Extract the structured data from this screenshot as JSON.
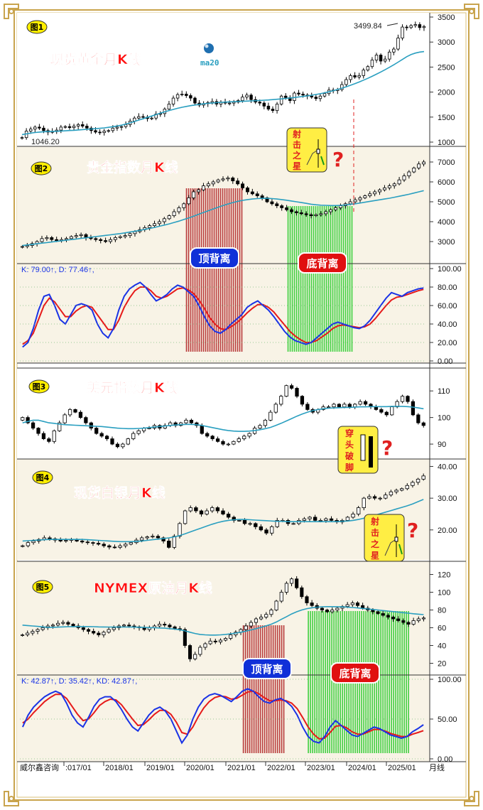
{
  "colors": {
    "panel_bg": "#f8f3e6",
    "up": "#000000",
    "down": "#000000",
    "ma": "#2a9fc0",
    "k_line": "#1a33e6",
    "d_line": "#e61a1a",
    "top_div": "#b83a3a",
    "bottom_div": "#40d040",
    "title_red": "#ff1a1a"
  },
  "frame": {
    "x_labels": [
      "威尔鑫咨询",
      ":017/01",
      "2018/01",
      "2019/01",
      "2020/01",
      "2021/01",
      "2022/01",
      "2023/01",
      "2024/01",
      "2025/01"
    ],
    "period_label": "月线"
  },
  "annotations": {
    "shooting_star": [
      "射",
      "击",
      "之",
      "星"
    ],
    "piercing": [
      "穿",
      "头",
      "破",
      "脚"
    ],
    "question": "?",
    "top_divergence": "顶背离",
    "bottom_divergence": "底背离",
    "ma_label": "ma20"
  },
  "chart_data": [
    {
      "type": "candlestick",
      "badge": "图1",
      "title": "现货黄金月K线",
      "ylim": [
        1000,
        3500
      ],
      "yticks": [
        "1000",
        "1500",
        "2000",
        "2500",
        "3000",
        "3500"
      ],
      "marked_high": "3499.84",
      "marked_low": "1046.20",
      "close": [
        1090,
        1220,
        1260,
        1300,
        1280,
        1230,
        1200,
        1210,
        1240,
        1300,
        1310,
        1290,
        1320,
        1350,
        1320,
        1280,
        1230,
        1200,
        1190,
        1220,
        1230,
        1280,
        1300,
        1310,
        1350,
        1420,
        1480,
        1510,
        1500,
        1470,
        1480,
        1560,
        1570,
        1660,
        1760,
        1880,
        1950,
        1960,
        1930,
        1880,
        1780,
        1740,
        1770,
        1790,
        1810,
        1760,
        1800,
        1780,
        1780,
        1800,
        1830,
        1900,
        1940,
        1850,
        1800,
        1780,
        1720,
        1660,
        1630,
        1760,
        1920,
        1890,
        1830,
        1980,
        1960,
        1940,
        1920,
        1900,
        1870,
        1920,
        1970,
        2040,
        2030,
        2050,
        2150,
        2250,
        2330,
        2300,
        2330,
        2440,
        2510,
        2640,
        2740,
        2620,
        2660,
        2800,
        2860,
        3080,
        3300,
        3290,
        3330,
        3350,
        3290,
        3310
      ],
      "ma20": [
        1150,
        1165,
        1180,
        1192,
        1200,
        1208,
        1212,
        1215,
        1218,
        1222,
        1226,
        1231,
        1236,
        1243,
        1250,
        1256,
        1262,
        1268,
        1275,
        1284,
        1295,
        1308,
        1322,
        1340,
        1360,
        1385,
        1412,
        1440,
        1468,
        1495,
        1522,
        1550,
        1578,
        1605,
        1630,
        1654,
        1676,
        1696,
        1713,
        1728,
        1742,
        1754,
        1765,
        1774,
        1782,
        1789,
        1795,
        1800,
        1804,
        1808,
        1812,
        1816,
        1820,
        1824,
        1828,
        1833,
        1838,
        1843,
        1849,
        1856,
        1864,
        1873,
        1882,
        1892,
        1902,
        1913,
        1925,
        1938,
        1952,
        1968,
        1986,
        2006,
        2028,
        2052,
        2078,
        2106,
        2136,
        2168,
        2202,
        2238,
        2276,
        2316,
        2358,
        2402,
        2448,
        2496,
        2546,
        2598,
        2652,
        2708,
        2750,
        2780,
        2800,
        2810
      ]
    },
    {
      "type": "candlestick",
      "badge": "图2",
      "title": "贵金指数月K线",
      "ylim": [
        2000,
        7500
      ],
      "yticks": [
        "3000",
        "4000",
        "5000",
        "6000",
        "7000"
      ],
      "close": [
        2750,
        2800,
        2900,
        3000,
        3150,
        3200,
        3100,
        3050,
        3100,
        3150,
        3250,
        3300,
        3350,
        3200,
        3150,
        3100,
        3050,
        3000,
        3100,
        3200,
        3250,
        3300,
        3400,
        3500,
        3600,
        3700,
        3800,
        3900,
        4000,
        4150,
        4300,
        4500,
        4700,
        4900,
        5200,
        5500,
        5600,
        5800,
        5900,
        6000,
        6100,
        6150,
        6200,
        6050,
        5900,
        5700,
        5500,
        5400,
        5300,
        5200,
        5000,
        4900,
        4800,
        4700,
        4600,
        4500,
        4450,
        4400,
        4350,
        4300,
        4350,
        4400,
        4500,
        4600,
        4700,
        4800,
        4900,
        5000,
        5100,
        5200,
        5300,
        5400,
        5500,
        5600,
        5700,
        5800,
        5900,
        6100,
        6300,
        6500,
        6700,
        6900,
        7000
      ],
      "ma20": [
        2800,
        2830,
        2860,
        2890,
        2920,
        2950,
        2980,
        3010,
        3040,
        3070,
        3100,
        3130,
        3160,
        3190,
        3220,
        3250,
        3280,
        3310,
        3340,
        3370,
        3400,
        3440,
        3480,
        3520,
        3560,
        3610,
        3660,
        3710,
        3770,
        3830,
        3890,
        3960,
        4030,
        4110,
        4190,
        4280,
        4370,
        4460,
        4550,
        4640,
        4730,
        4810,
        4890,
        4960,
        5020,
        5070,
        5110,
        5140,
        5160,
        5170,
        5170,
        5160,
        5140,
        5110,
        5080,
        5040,
        5000,
        4960,
        4920,
        4880,
        4850,
        4830,
        4820,
        4810,
        4810,
        4820,
        4840,
        4870,
        4900,
        4940,
        4980,
        5020,
        5060,
        5100,
        5140,
        5180,
        5230,
        5280,
        5330,
        5380,
        5440,
        5500,
        5560
      ]
    },
    {
      "type": "kdj",
      "k_label": "K: 79.00↑, D: 77.46↑,",
      "ylim": [
        0,
        100
      ],
      "yticks": [
        "0.00",
        "20.00",
        "40.00",
        "60.00",
        "80.00",
        "100.00"
      ],
      "k": [
        15,
        20,
        35,
        55,
        70,
        72,
        60,
        45,
        40,
        50,
        60,
        62,
        60,
        55,
        40,
        30,
        25,
        35,
        55,
        70,
        78,
        82,
        85,
        80,
        72,
        65,
        68,
        72,
        78,
        82,
        80,
        75,
        70,
        60,
        48,
        38,
        32,
        30,
        34,
        40,
        45,
        50,
        58,
        62,
        65,
        60,
        55,
        48,
        40,
        32,
        26,
        22,
        20,
        18,
        20,
        25,
        30,
        35,
        40,
        42,
        40,
        38,
        36,
        35,
        38,
        44,
        52,
        60,
        68,
        74,
        72,
        70,
        74,
        76,
        78,
        79
      ],
      "d": [
        18,
        22,
        30,
        45,
        60,
        68,
        64,
        56,
        48,
        48,
        54,
        58,
        60,
        58,
        50,
        42,
        34,
        34,
        44,
        58,
        68,
        76,
        80,
        80,
        76,
        70,
        68,
        70,
        74,
        78,
        79,
        77,
        73,
        66,
        57,
        47,
        40,
        35,
        34,
        37,
        41,
        46,
        52,
        57,
        61,
        61,
        58,
        53,
        46,
        39,
        32,
        27,
        23,
        20,
        20,
        22,
        26,
        30,
        35,
        38,
        39,
        38,
        37,
        36,
        37,
        40,
        46,
        53,
        60,
        66,
        69,
        70,
        72,
        74,
        76,
        77.46
      ]
    },
    {
      "type": "candlestick",
      "badge": "图3",
      "title": "美元指数月K线",
      "ylim": [
        86,
        117
      ],
      "yticks": [
        "90",
        "100",
        "110"
      ],
      "close": [
        100,
        98,
        96,
        94,
        92,
        91,
        95,
        98,
        101,
        103,
        102,
        100,
        98,
        96,
        94,
        93,
        92,
        90,
        89,
        90,
        92,
        94,
        95,
        96,
        96,
        97,
        96,
        97,
        98,
        97,
        98,
        99,
        98,
        97,
        94,
        93,
        92,
        91,
        90,
        90,
        91,
        92,
        93,
        94,
        96,
        97,
        99,
        102,
        105,
        108,
        112,
        111,
        108,
        105,
        103,
        102,
        103,
        104,
        104,
        105,
        104,
        105,
        104,
        105,
        106,
        105,
        104,
        103,
        102,
        101,
        104,
        106,
        108,
        106,
        101,
        98,
        97
      ],
      "ma20": [
        98,
        98.5,
        99,
        99,
        98.5,
        98,
        97.8,
        97.5,
        97.3,
        97.2,
        97.1,
        97,
        96.9,
        96.8,
        96.7,
        96.6,
        96.4,
        96.2,
        96,
        95.9,
        95.8,
        95.8,
        95.9,
        96,
        96.2,
        96.4,
        96.6,
        96.8,
        97,
        97.2,
        97.3,
        97.4,
        97.4,
        97.3,
        97,
        96.6,
        96.2,
        95.8,
        95.4,
        95.1,
        94.9,
        94.8,
        94.8,
        94.9,
        95.1,
        95.4,
        95.8,
        96.3,
        97,
        97.8,
        98.7,
        99.6,
        100.5,
        101.3,
        102,
        102.6,
        103,
        103.3,
        103.5,
        103.6,
        103.7,
        103.8,
        103.8,
        103.9,
        104,
        104,
        104.1,
        104.1,
        104.1,
        104.1,
        104.2,
        104.2,
        104.2,
        104.1,
        103.9,
        103.6,
        103.3
      ]
    },
    {
      "type": "candlestick",
      "badge": "图4",
      "title": "现货白银月K线",
      "ylim": [
        11,
        41
      ],
      "yticks": [
        "20.00",
        "30.00",
        "40.00"
      ],
      "close": [
        15,
        16,
        16.5,
        17,
        17.5,
        17.2,
        16.8,
        16.5,
        16.7,
        17,
        16.5,
        16.2,
        16,
        15.8,
        15.5,
        15,
        14.6,
        14.5,
        15,
        15.5,
        16,
        16.8,
        17.5,
        17.8,
        18,
        17.5,
        16.5,
        14.5,
        18,
        22,
        26,
        27,
        26,
        25,
        26,
        27,
        26,
        25,
        24,
        23,
        23,
        22,
        22,
        21,
        20,
        19,
        21,
        23,
        23,
        22,
        22,
        23,
        23.5,
        24,
        23,
        23,
        23.5,
        23,
        22.5,
        23,
        24,
        25,
        27,
        30,
        30.5,
        30,
        30,
        31,
        32,
        32.5,
        33,
        34,
        35,
        36,
        37
      ],
      "ma20": [
        16.5,
        16.6,
        16.7,
        16.8,
        16.9,
        17,
        17,
        17,
        17,
        17,
        17,
        17,
        16.9,
        16.8,
        16.7,
        16.6,
        16.5,
        16.4,
        16.3,
        16.3,
        16.3,
        16.4,
        16.5,
        16.7,
        16.9,
        17.1,
        17.3,
        17.5,
        17.8,
        18.2,
        18.8,
        19.4,
        20,
        20.6,
        21.2,
        21.8,
        22.3,
        22.7,
        23,
        23.2,
        23.3,
        23.3,
        23.2,
        23.1,
        23,
        22.9,
        22.8,
        22.7,
        22.7,
        22.6,
        22.6,
        22.6,
        22.6,
        22.6,
        22.6,
        22.6,
        22.6,
        22.6,
        22.6,
        22.7,
        22.8,
        23,
        23.3,
        23.7,
        24.1,
        24.6,
        25.1,
        25.6,
        26.1,
        26.6,
        27.1,
        27.6,
        28.2,
        28.9,
        29.6
      ]
    },
    {
      "type": "candlestick",
      "badge": "图5",
      "title": "NYMEX原油月K线",
      "ylim": [
        10,
        130
      ],
      "yticks": [
        "20",
        "40",
        "60",
        "80",
        "100",
        "120"
      ],
      "close": [
        52,
        54,
        56,
        58,
        60,
        62,
        63,
        65,
        66,
        64,
        62,
        60,
        58,
        56,
        54,
        52,
        55,
        58,
        60,
        62,
        63,
        62,
        61,
        60,
        58,
        60,
        62,
        64,
        63,
        61,
        59,
        58,
        40,
        25,
        30,
        38,
        42,
        45,
        44,
        46,
        48,
        52,
        55,
        58,
        62,
        66,
        70,
        72,
        75,
        80,
        90,
        100,
        110,
        115,
        105,
        95,
        88,
        85,
        82,
        80,
        78,
        80,
        82,
        84,
        86,
        88,
        85,
        82,
        80,
        78,
        76,
        74,
        72,
        70,
        68,
        66,
        64,
        68,
        70,
        71
      ],
      "ma20": [
        63,
        62.5,
        62,
        61.5,
        61,
        60.5,
        60.5,
        60.7,
        61,
        61.2,
        61.3,
        61.4,
        61.4,
        61.3,
        61.2,
        61,
        60.9,
        60.8,
        60.8,
        60.8,
        60.8,
        60.8,
        60.7,
        60.6,
        60.4,
        60.2,
        60,
        59.8,
        59.5,
        59,
        58.5,
        57.8,
        56.5,
        55,
        53.5,
        52.5,
        52,
        51.8,
        51.8,
        52,
        52.5,
        53.2,
        54,
        55,
        56.2,
        57.5,
        59,
        60.5,
        62.2,
        64,
        66.5,
        69.5,
        72.5,
        75.5,
        78,
        80,
        81.5,
        82.5,
        83.2,
        83.6,
        83.8,
        83.8,
        83.7,
        83.5,
        83.2,
        82.8,
        82.3,
        81.8,
        81.2,
        80.6,
        80,
        79.4,
        78.8,
        78.2,
        77.6,
        77,
        76.4,
        75.8,
        75.3,
        74.8
      ]
    },
    {
      "type": "kdj",
      "k_label": "K: 42.87↑, D: 35.42↑, KD: 42.87↑,",
      "ylim": [
        0,
        100
      ],
      "yticks": [
        "0.00",
        "50.00",
        "100.00"
      ],
      "k": [
        40,
        55,
        65,
        72,
        78,
        82,
        85,
        82,
        70,
        55,
        45,
        40,
        52,
        66,
        75,
        78,
        78,
        72,
        62,
        50,
        40,
        35,
        45,
        55,
        62,
        65,
        60,
        50,
        35,
        20,
        30,
        50,
        65,
        75,
        80,
        82,
        80,
        76,
        72,
        78,
        85,
        88,
        85,
        78,
        72,
        70,
        74,
        76,
        72,
        66,
        55,
        40,
        28,
        22,
        20,
        28,
        40,
        48,
        42,
        36,
        30,
        28,
        32,
        36,
        40,
        38,
        34,
        30,
        28,
        26,
        28,
        34,
        38,
        42.87
      ],
      "d": [
        45,
        50,
        58,
        65,
        72,
        77,
        81,
        81,
        76,
        66,
        56,
        48,
        50,
        58,
        67,
        72,
        75,
        74,
        68,
        59,
        50,
        42,
        43,
        49,
        56,
        61,
        61,
        56,
        46,
        33,
        31,
        40,
        53,
        64,
        72,
        77,
        79,
        78,
        75,
        76,
        80,
        84,
        85,
        82,
        77,
        73,
        73,
        74,
        73,
        70,
        63,
        52,
        40,
        31,
        25,
        26,
        33,
        41,
        42,
        39,
        34,
        31,
        31,
        34,
        37,
        37,
        35,
        32,
        30,
        28,
        28,
        31,
        33,
        35.42
      ]
    }
  ]
}
